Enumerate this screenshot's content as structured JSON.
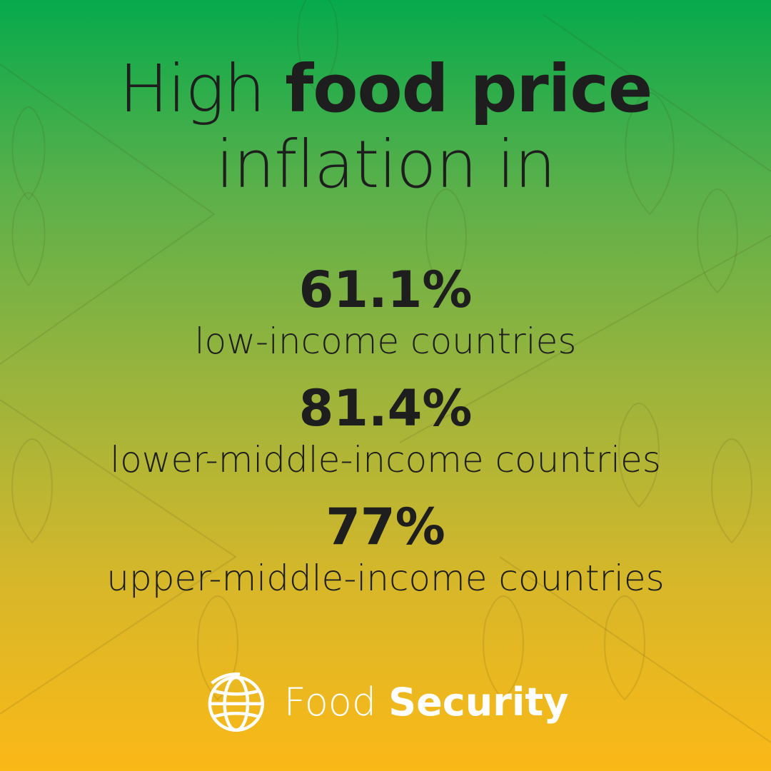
{
  "headline": {
    "prefix": "High ",
    "bold": "food price",
    "line2": "inflation in"
  },
  "stats": [
    {
      "value": "61.1%",
      "label": "low-income countries"
    },
    {
      "value": "81.4%",
      "label": "lower-middle-income countries"
    },
    {
      "value": "77%",
      "label": "upper-middle-income countries"
    }
  ],
  "brand": {
    "icon": "globe-icon",
    "light": "Food ",
    "bold": "Security"
  },
  "colors": {
    "gradient_top": "#06aa4c",
    "gradient_bottom": "#fbb817",
    "text": "#1e1e1e",
    "brand_text": "#ffffff"
  }
}
